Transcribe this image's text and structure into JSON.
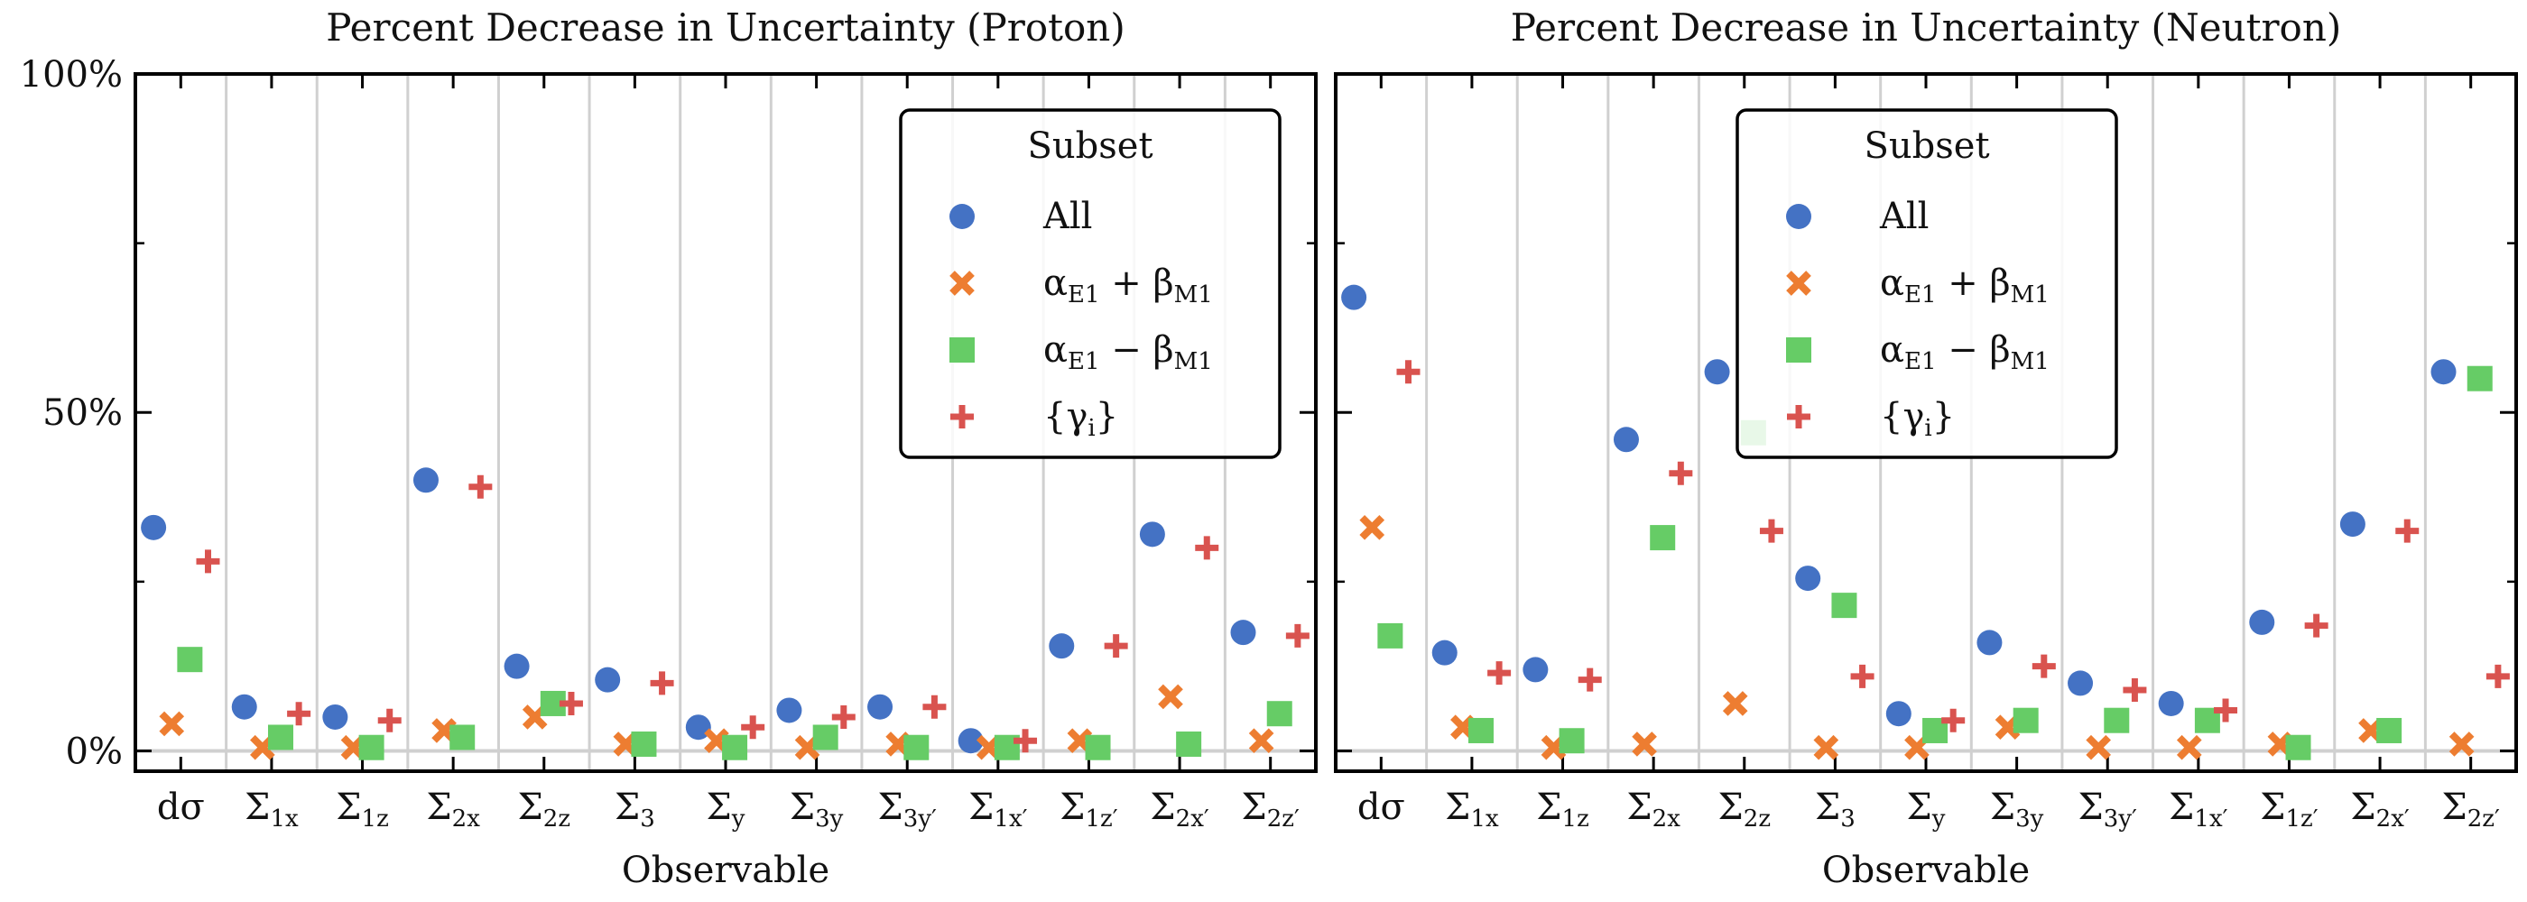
{
  "colors": {
    "All": "#4472c4",
    "aplus": "#ed7d31",
    "aminus": "#66cc66",
    "gamma": "#d9534f",
    "grid": "#d0d0d0"
  },
  "chart_data": [
    {
      "type": "scatter",
      "title": "Percent Decrease in Uncertainty (Proton)",
      "xlabel": "Observable",
      "ylabel": "",
      "ylim": [
        -3,
        100
      ],
      "yticks": [
        "0%",
        "50%",
        "100%"
      ],
      "categories": [
        {
          "main": "dσ",
          "sub": ""
        },
        {
          "main": "Σ",
          "sub": "1x"
        },
        {
          "main": "Σ",
          "sub": "1z"
        },
        {
          "main": "Σ",
          "sub": "2x"
        },
        {
          "main": "Σ",
          "sub": "2z"
        },
        {
          "main": "Σ",
          "sub": "3"
        },
        {
          "main": "Σ",
          "sub": "y"
        },
        {
          "main": "Σ",
          "sub": "3y"
        },
        {
          "main": "Σ",
          "sub": "3y′"
        },
        {
          "main": "Σ",
          "sub": "1x′"
        },
        {
          "main": "Σ",
          "sub": "1z′"
        },
        {
          "main": "Σ",
          "sub": "2x′"
        },
        {
          "main": "Σ",
          "sub": "2z′"
        }
      ],
      "legend": {
        "title": "Subset",
        "position": "top-right",
        "entries": [
          {
            "main": "All",
            "sub": ""
          },
          {
            "main": "α",
            "sub": "E1",
            "op": " + β",
            "sub2": "M1"
          },
          {
            "main": "α",
            "sub": "E1",
            "op": " − β",
            "sub2": "M1"
          },
          {
            "main": "{γ",
            "sub": "i",
            "op": "}",
            "sub2": ""
          }
        ]
      },
      "series": [
        {
          "key": "All",
          "marker": "circle",
          "values": [
            33,
            6.5,
            5,
            40,
            12.5,
            10.5,
            3.5,
            6,
            6.5,
            1.5,
            15.5,
            32,
            17.5
          ]
        },
        {
          "key": "aplus",
          "marker": "x",
          "values": [
            4,
            0.5,
            0.5,
            3,
            5,
            1,
            1.5,
            0.5,
            1,
            0.5,
            1.5,
            8,
            1.5
          ]
        },
        {
          "key": "aminus",
          "marker": "square",
          "values": [
            13.5,
            2,
            0.5,
            2,
            7,
            1,
            0.5,
            2,
            0.5,
            0.5,
            0.5,
            1,
            5.5
          ]
        },
        {
          "key": "gamma",
          "marker": "plus",
          "values": [
            28,
            5.5,
            4.5,
            39,
            7,
            10,
            3.5,
            5,
            6.5,
            1.5,
            15.5,
            30,
            17
          ]
        }
      ]
    },
    {
      "type": "scatter",
      "title": "Percent Decrease in Uncertainty (Neutron)",
      "xlabel": "Observable",
      "ylabel": "",
      "ylim": [
        -3,
        100
      ],
      "yticks": [
        "0%",
        "50%",
        "100%"
      ],
      "categories": [
        {
          "main": "dσ",
          "sub": ""
        },
        {
          "main": "Σ",
          "sub": "1x"
        },
        {
          "main": "Σ",
          "sub": "1z"
        },
        {
          "main": "Σ",
          "sub": "2x"
        },
        {
          "main": "Σ",
          "sub": "2z"
        },
        {
          "main": "Σ",
          "sub": "3"
        },
        {
          "main": "Σ",
          "sub": "y"
        },
        {
          "main": "Σ",
          "sub": "3y"
        },
        {
          "main": "Σ",
          "sub": "3y′"
        },
        {
          "main": "Σ",
          "sub": "1x′"
        },
        {
          "main": "Σ",
          "sub": "1z′"
        },
        {
          "main": "Σ",
          "sub": "2x′"
        },
        {
          "main": "Σ",
          "sub": "2z′"
        }
      ],
      "legend": {
        "title": "Subset",
        "position": "top-center",
        "entries": [
          {
            "main": "All",
            "sub": ""
          },
          {
            "main": "α",
            "sub": "E1",
            "op": " + β",
            "sub2": "M1"
          },
          {
            "main": "α",
            "sub": "E1",
            "op": " − β",
            "sub2": "M1"
          },
          {
            "main": "{γ",
            "sub": "i",
            "op": "}",
            "sub2": ""
          }
        ]
      },
      "series": [
        {
          "key": "All",
          "marker": "circle",
          "values": [
            67,
            14.5,
            12,
            46,
            56,
            25.5,
            5.5,
            16,
            10,
            7,
            19,
            33.5,
            56
          ]
        },
        {
          "key": "aplus",
          "marker": "x",
          "values": [
            33,
            3.5,
            0.5,
            1,
            7,
            0.5,
            0.5,
            3.5,
            0.5,
            0.5,
            1,
            3,
            1
          ]
        },
        {
          "key": "aminus",
          "marker": "square",
          "values": [
            17,
            3,
            1.5,
            31.5,
            47,
            21.5,
            3,
            4.5,
            4.5,
            4.5,
            0.5,
            3,
            55
          ]
        },
        {
          "key": "gamma",
          "marker": "plus",
          "values": [
            56,
            11.5,
            10.5,
            41,
            32.5,
            11,
            4.5,
            12.5,
            9,
            6,
            18.5,
            32.5,
            11
          ]
        }
      ]
    }
  ]
}
